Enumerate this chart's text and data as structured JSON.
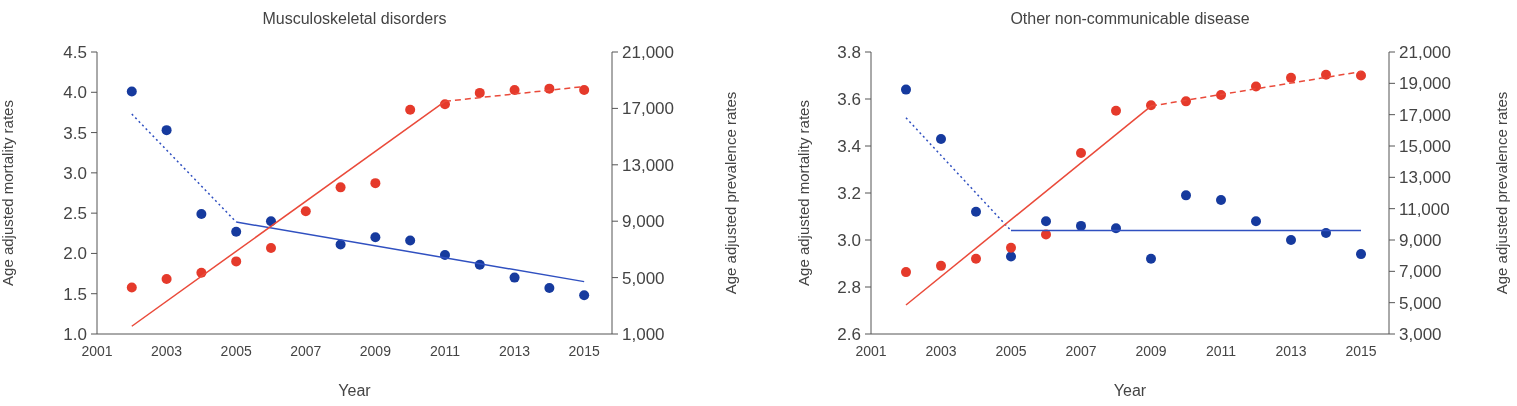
{
  "chart_data": [
    {
      "type": "scatter",
      "title": "Musculoskeletal disorders",
      "xlabel": "Year",
      "ylabel": "Age adjusted mortality rates",
      "y2label": "Age adjusted prevalence rates",
      "x": [
        2002,
        2003,
        2004,
        2005,
        2006,
        2007,
        2008,
        2009,
        2010,
        2011,
        2012,
        2013,
        2014,
        2015
      ],
      "xlim": [
        2001,
        2015.8
      ],
      "xticks": [
        2001,
        2003,
        2005,
        2007,
        2009,
        2011,
        2013,
        2015
      ],
      "ylim": [
        1.0,
        4.5
      ],
      "yticks": [
        {
          "value": 1.0,
          "label": "1.0"
        },
        {
          "value": 1.5,
          "label": "1.5"
        },
        {
          "value": 2.0,
          "label": "2.0"
        },
        {
          "value": 2.5,
          "label": "2.5"
        },
        {
          "value": 3.0,
          "label": "3.0"
        },
        {
          "value": 3.5,
          "label": "3.5"
        },
        {
          "value": 4.0,
          "label": "4.0"
        },
        {
          "value": 4.5,
          "label": "4.5"
        }
      ],
      "y2lim": [
        1000,
        21000
      ],
      "y2ticks": [
        {
          "value": 1000,
          "label": "1,000"
        },
        {
          "value": 5000,
          "label": "5,000"
        },
        {
          "value": 9000,
          "label": "9,000"
        },
        {
          "value": 13000,
          "label": "13,000"
        },
        {
          "value": 17000,
          "label": "17,000"
        },
        {
          "value": 21000,
          "label": "21,000"
        }
      ],
      "marker": "circle",
      "series": [
        {
          "axis": "y",
          "color": "#163a9e",
          "values": [
            4.01,
            3.53,
            2.49,
            2.27,
            2.4,
            null,
            2.11,
            2.2,
            2.16,
            1.98,
            1.86,
            1.7,
            1.57,
            1.48
          ]
        },
        {
          "axis": "y2",
          "color": "#e53a2b",
          "values": [
            4300,
            4900,
            5350,
            6150,
            7100,
            9700,
            11400,
            11700,
            16900,
            17300,
            18100,
            18300,
            18400,
            18300
          ]
        },
        {
          "type": "line",
          "axis": "y",
          "color": "#3050c0",
          "line_style": "dotted",
          "marker": "none",
          "x": [
            2002,
            2005
          ],
          "values": [
            3.73,
            2.39
          ]
        },
        {
          "type": "line",
          "axis": "y",
          "color": "#3050c0",
          "line_style": "solid",
          "marker": "none",
          "x": [
            2005,
            2015
          ],
          "values": [
            2.39,
            1.65
          ]
        },
        {
          "type": "line",
          "axis": "y2",
          "color": "#ea4a3a",
          "line_style": "solid",
          "marker": "none",
          "x": [
            2002,
            2011
          ],
          "values": [
            1550,
            17500
          ]
        },
        {
          "type": "line",
          "axis": "y2",
          "color": "#ea4a3a",
          "line_style": "dashed",
          "marker": "none",
          "x": [
            2011,
            2015
          ],
          "values": [
            17500,
            18550
          ]
        }
      ]
    },
    {
      "type": "scatter",
      "title": "Other non-communicable disease",
      "xlabel": "Year",
      "ylabel": "Age adjusted mortality rates",
      "y2label": "Age adjusted prevalence rates",
      "x": [
        2002,
        2003,
        2004,
        2005,
        2006,
        2007,
        2008,
        2009,
        2010,
        2011,
        2012,
        2013,
        2014,
        2015
      ],
      "xlim": [
        2001,
        2015.8
      ],
      "xticks": [
        2001,
        2003,
        2005,
        2007,
        2009,
        2011,
        2013,
        2015
      ],
      "ylim": [
        2.6,
        3.8
      ],
      "yticks": [
        2.6,
        2.8,
        {
          "value": 3.0,
          "label": "3.0"
        },
        3.2,
        3.4,
        3.6,
        3.8
      ],
      "y2lim": [
        3000,
        21000
      ],
      "y2ticks": [
        {
          "value": 3000,
          "label": "3,000"
        },
        {
          "value": 5000,
          "label": "5,000"
        },
        {
          "value": 7000,
          "label": "7,000"
        },
        {
          "value": 9000,
          "label": "9,000"
        },
        {
          "value": 11000,
          "label": "11,000"
        },
        {
          "value": 13000,
          "label": "13,000"
        },
        {
          "value": 15000,
          "label": "15,000"
        },
        {
          "value": 17000,
          "label": "17,000"
        },
        {
          "value": 19000,
          "label": "19,000"
        },
        {
          "value": 21000,
          "label": "21,000"
        }
      ],
      "marker": "circle",
      "series": [
        {
          "axis": "y",
          "color": "#163a9e",
          "values": [
            3.64,
            3.43,
            3.12,
            2.93,
            3.08,
            3.06,
            3.05,
            2.92,
            3.19,
            3.17,
            3.08,
            3.0,
            3.03,
            2.94
          ]
        },
        {
          "axis": "y2",
          "color": "#e53a2b",
          "values": [
            6950,
            7350,
            7800,
            8500,
            9350,
            14550,
            17250,
            17600,
            17850,
            18250,
            18800,
            19350,
            19550,
            19500
          ]
        },
        {
          "type": "line",
          "axis": "y",
          "color": "#3050c0",
          "line_style": "dotted",
          "marker": "none",
          "x": [
            2002,
            2005
          ],
          "values": [
            3.52,
            3.04
          ]
        },
        {
          "type": "line",
          "axis": "y",
          "color": "#3050c0",
          "line_style": "solid",
          "marker": "none",
          "x": [
            2005,
            2015
          ],
          "values": [
            3.04,
            3.04
          ]
        },
        {
          "type": "line",
          "axis": "y2",
          "color": "#ea4a3a",
          "line_style": "solid",
          "marker": "none",
          "x": [
            2002,
            2009
          ],
          "values": [
            4850,
            17550
          ]
        },
        {
          "type": "line",
          "axis": "y2",
          "color": "#ea4a3a",
          "line_style": "dashed",
          "marker": "none",
          "x": [
            2009,
            2015
          ],
          "values": [
            17550,
            19750
          ]
        }
      ]
    }
  ]
}
